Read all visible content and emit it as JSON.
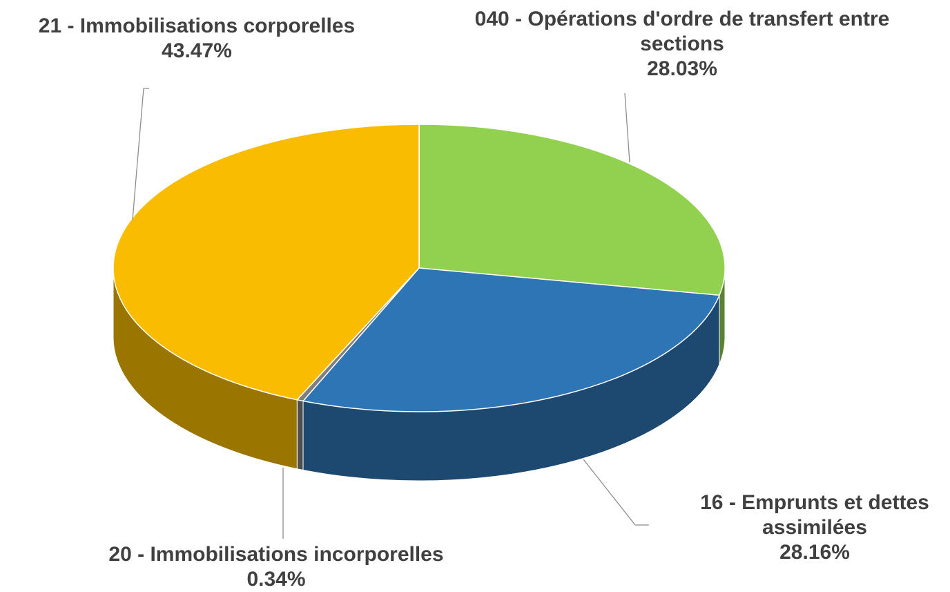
{
  "chart_data": {
    "type": "pie3d",
    "categories": [
      "040 - Opérations d'ordre de transfert entre sections",
      "16 - Emprunts et dettes assimilées",
      "20 - Immobilisations incorporelles",
      "21 - Immobilisations corporelles"
    ],
    "values": [
      28.03,
      28.16,
      0.34,
      43.47
    ],
    "value_labels": [
      "28.03%",
      "28.16%",
      "0.34%",
      "43.47%"
    ],
    "colors": [
      "#92d050",
      "#2e75b6",
      "#7f7f7f",
      "#f9bc00"
    ]
  }
}
